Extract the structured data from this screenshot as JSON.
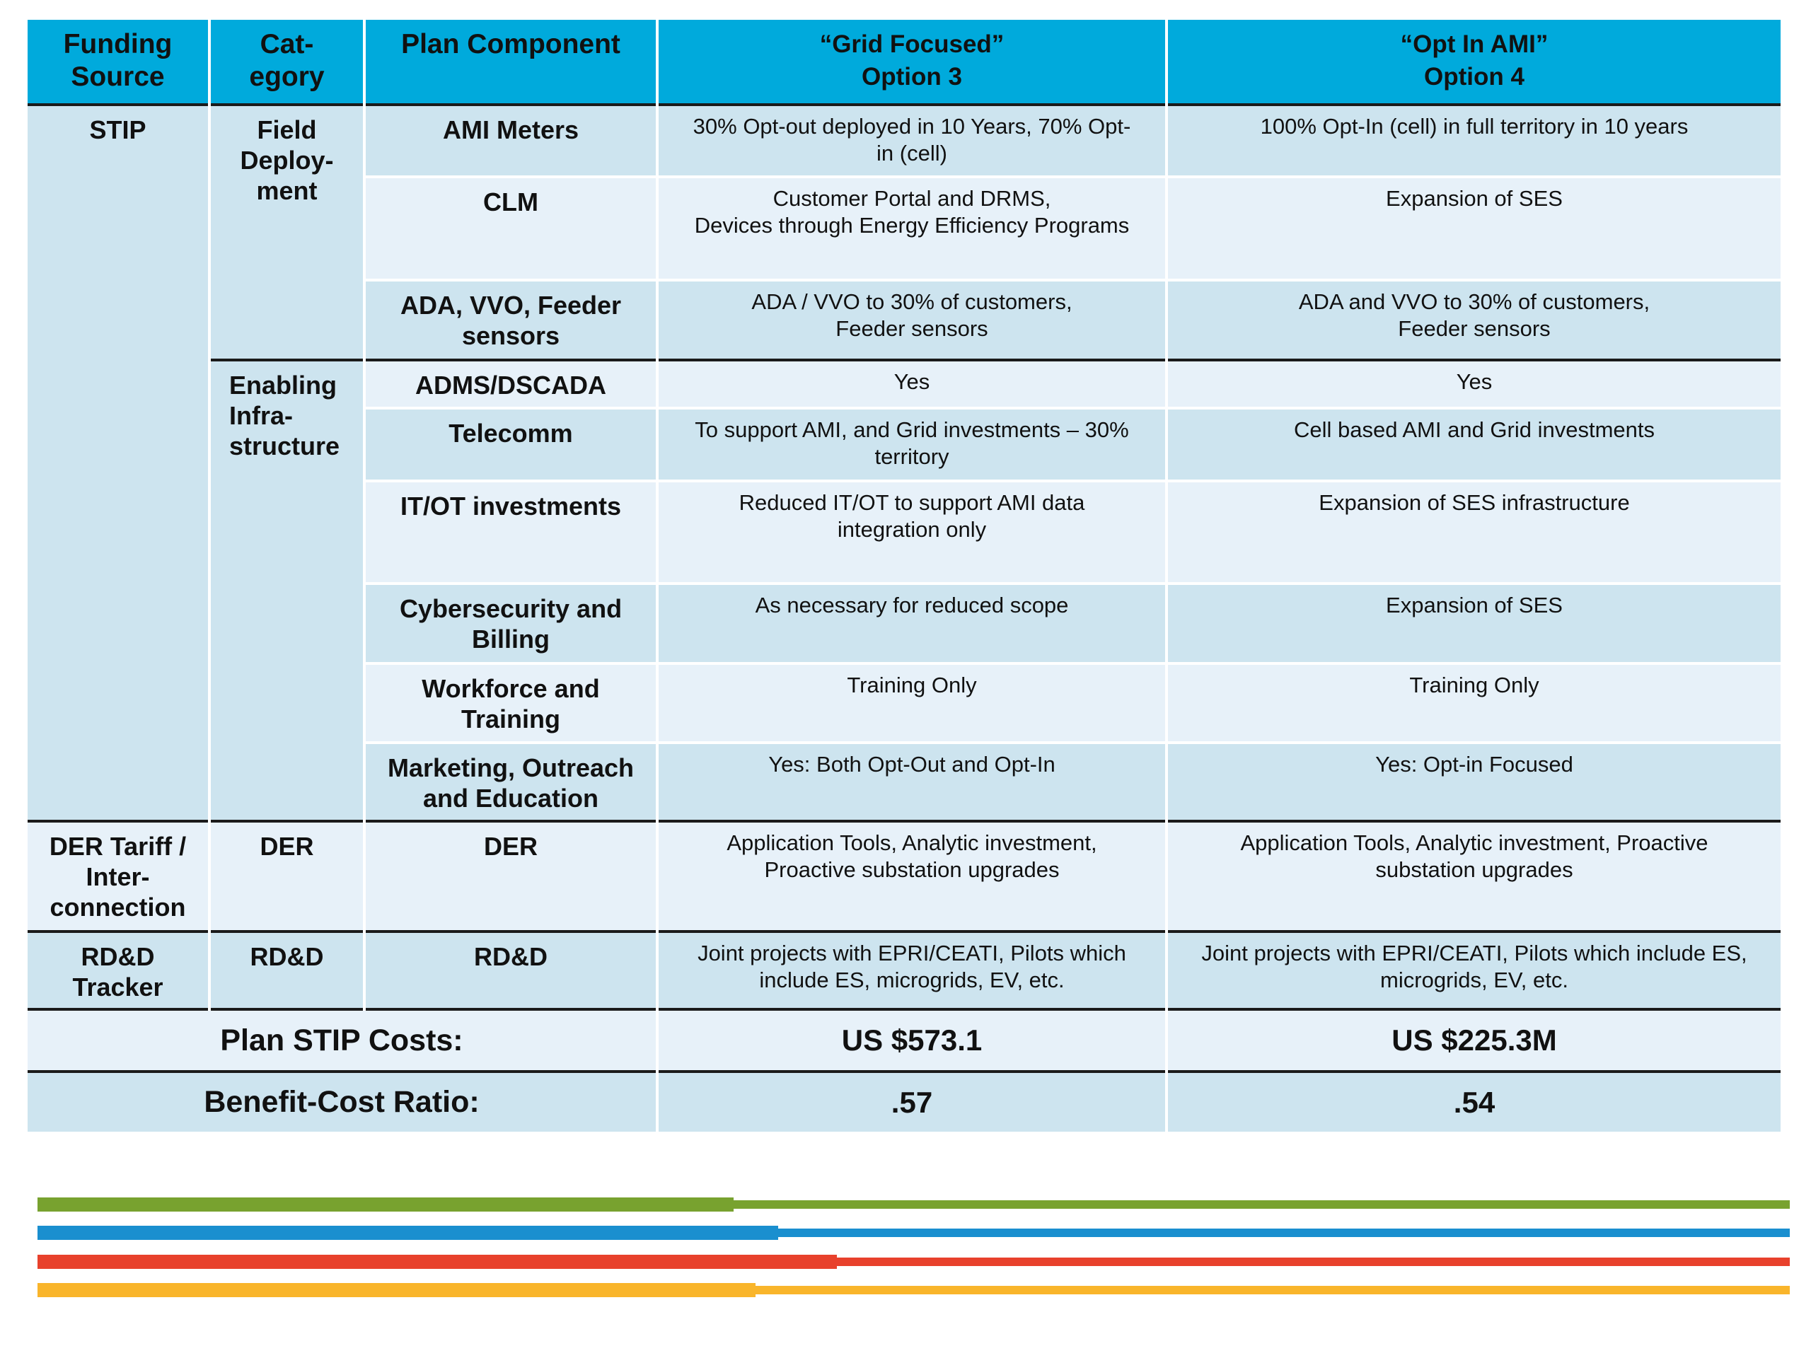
{
  "header": {
    "col1": "Funding\nSource",
    "col2": "Cat-\negory",
    "col3": "Plan Component",
    "col4": "“Grid Focused”\nOption 3",
    "col5": "“Opt In AMI”\nOption 4"
  },
  "groups": {
    "stip": "STIP",
    "field_deployment": "Field\nDeploy-\nment",
    "enabling_infrastructure": "Enabling\nInfra-\nstructure",
    "der_tariff": "DER Tariff /\nInter-\nconnection",
    "der_category": "DER",
    "rdd_tracker": "RD&D\nTracker",
    "rdd_category": "RD&D"
  },
  "rows": [
    {
      "component": "AMI Meters",
      "opt3": "30% Opt-out deployed in 10 Years, 70% Opt-\nin (cell)",
      "opt4": "100% Opt-In (cell) in full territory in 10 years"
    },
    {
      "component": "CLM",
      "opt3": "Customer Portal and DRMS,\nDevices through Energy Efficiency Programs",
      "opt4": "Expansion of SES"
    },
    {
      "component": "ADA, VVO, Feeder\nsensors",
      "opt3": "ADA / VVO to 30% of customers,\nFeeder sensors",
      "opt4": "ADA and VVO to 30% of customers,\nFeeder sensors"
    },
    {
      "component": "ADMS/DSCADA",
      "opt3": "Yes",
      "opt4": "Yes"
    },
    {
      "component": "Telecomm",
      "opt3": "To support AMI, and Grid investments – 30%\nterritory",
      "opt4": "Cell based AMI and Grid investments"
    },
    {
      "component": "IT/OT investments",
      "opt3": "Reduced IT/OT to support AMI data\nintegration only",
      "opt4": "Expansion of SES infrastructure"
    },
    {
      "component": "Cybersecurity and\nBilling",
      "opt3": "As necessary for reduced scope",
      "opt4": "Expansion of SES"
    },
    {
      "component": "Workforce and\nTraining",
      "opt3": "Training Only",
      "opt4": "Training Only"
    },
    {
      "component": "Marketing, Outreach\nand Education",
      "opt3": "Yes: Both Opt-Out and Opt-In",
      "opt4": "Yes: Opt-in Focused"
    },
    {
      "component": "DER",
      "opt3": "Application Tools, Analytic investment,\nProactive substation upgrades",
      "opt4": "Application Tools, Analytic investment, Proactive\nsubstation upgrades"
    },
    {
      "component": "RD&D",
      "opt3": "Joint projects with EPRI/CEATI, Pilots which\ninclude ES, microgrids, EV, etc.",
      "opt4": "Joint projects with EPRI/CEATI, Pilots which include ES,\nmicrogrids, EV, etc."
    }
  ],
  "summary": {
    "costs_label": "Plan STIP Costs:",
    "costs_opt3": "US $573.1",
    "costs_opt4": "US $225.3M",
    "bcr_label": "Benefit-Cost Ratio:",
    "bcr_opt3": ".57",
    "bcr_opt4": ".54"
  },
  "decor_lines": [
    {
      "name": "green-stripe",
      "color": "#78a22f"
    },
    {
      "name": "blue-stripe",
      "color": "#1a8fcf"
    },
    {
      "name": "red-stripe",
      "color": "#e8412c"
    },
    {
      "name": "yellow-stripe",
      "color": "#f9b52b"
    }
  ]
}
